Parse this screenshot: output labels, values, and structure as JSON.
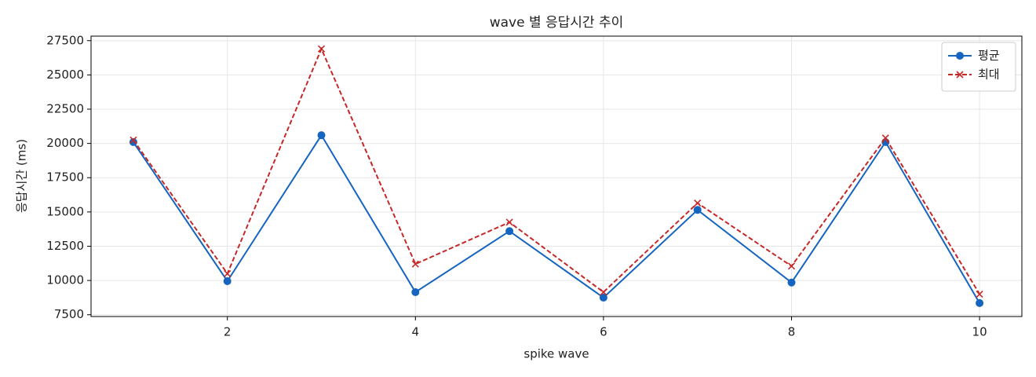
{
  "chart_data": {
    "type": "line",
    "title": "wave 별 응답시간 추이",
    "x_label": "spike wave",
    "y_label": "응답시간 (ms)",
    "x": [
      1,
      2,
      3,
      4,
      5,
      6,
      7,
      8,
      9,
      10
    ],
    "series": [
      {
        "name": "평균",
        "color": "#1565c0",
        "marker": "o",
        "linestyle": "solid",
        "values": [
          20100,
          9950,
          20600,
          9150,
          13600,
          8750,
          15150,
          9850,
          20100,
          8350
        ]
      },
      {
        "name": "최대",
        "color": "#c62828",
        "marker": "x",
        "linestyle": "dashed",
        "values": [
          20250,
          10500,
          26900,
          11200,
          14250,
          9150,
          15650,
          11050,
          20400,
          9000
        ]
      }
    ],
    "xlim": [
      0.55,
      10.45
    ],
    "ylim": [
      7370,
      27830
    ],
    "xticks": [
      2,
      4,
      6,
      8,
      10
    ],
    "yticks": [
      7500,
      10000,
      12500,
      15000,
      17500,
      20000,
      22500,
      25000,
      27500
    ],
    "grid": true,
    "legend": "upper right"
  }
}
